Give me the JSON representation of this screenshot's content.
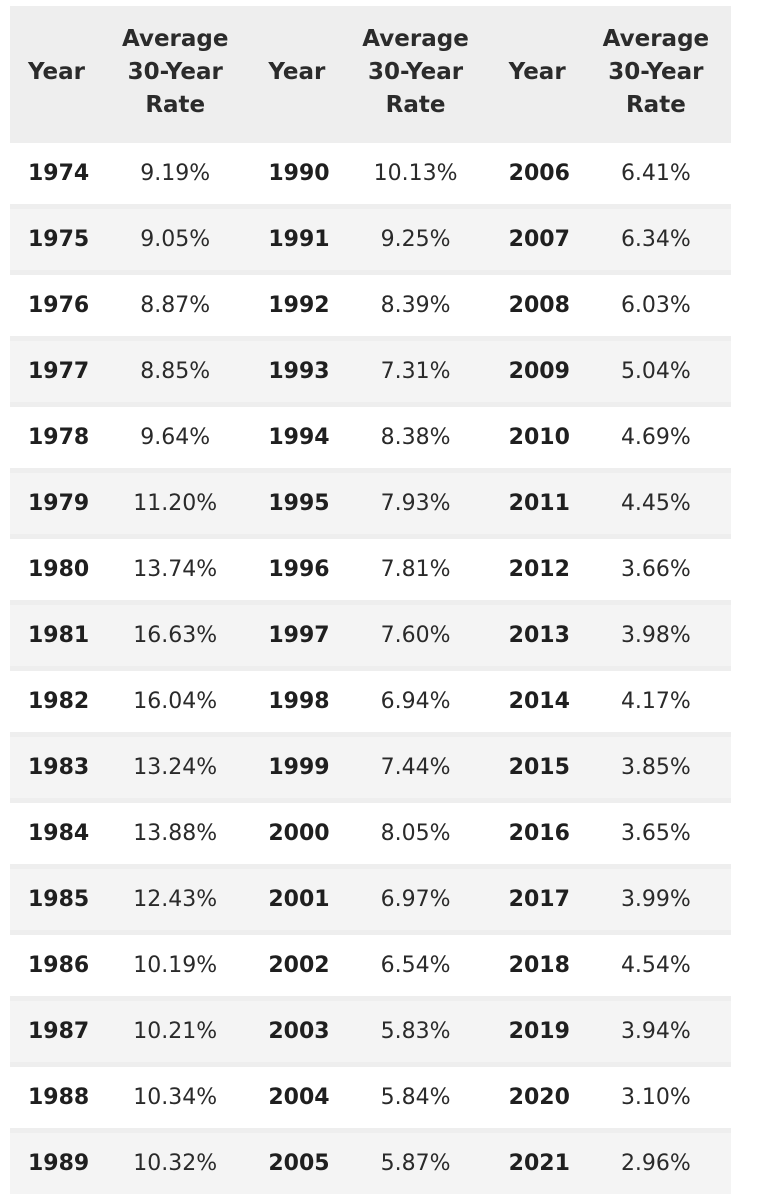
{
  "table": {
    "headers": {
      "year": "Year",
      "rate": [
        "Average",
        "30-Year",
        "Rate"
      ]
    },
    "rows": [
      [
        [
          "1974",
          "9.19%"
        ],
        [
          "1990",
          "10.13%"
        ],
        [
          "2006",
          "6.41%"
        ]
      ],
      [
        [
          "1975",
          "9.05%"
        ],
        [
          "1991",
          "9.25%"
        ],
        [
          "2007",
          "6.34%"
        ]
      ],
      [
        [
          "1976",
          "8.87%"
        ],
        [
          "1992",
          "8.39%"
        ],
        [
          "2008",
          "6.03%"
        ]
      ],
      [
        [
          "1977",
          "8.85%"
        ],
        [
          "1993",
          "7.31%"
        ],
        [
          "2009",
          "5.04%"
        ]
      ],
      [
        [
          "1978",
          "9.64%"
        ],
        [
          "1994",
          "8.38%"
        ],
        [
          "2010",
          "4.69%"
        ]
      ],
      [
        [
          "1979",
          "11.20%"
        ],
        [
          "1995",
          "7.93%"
        ],
        [
          "2011",
          "4.45%"
        ]
      ],
      [
        [
          "1980",
          "13.74%"
        ],
        [
          "1996",
          "7.81%"
        ],
        [
          "2012",
          "3.66%"
        ]
      ],
      [
        [
          "1981",
          "16.63%"
        ],
        [
          "1997",
          "7.60%"
        ],
        [
          "2013",
          "3.98%"
        ]
      ],
      [
        [
          "1982",
          "16.04%"
        ],
        [
          "1998",
          "6.94%"
        ],
        [
          "2014",
          "4.17%"
        ]
      ],
      [
        [
          "1983",
          "13.24%"
        ],
        [
          "1999",
          "7.44%"
        ],
        [
          "2015",
          "3.85%"
        ]
      ],
      [
        [
          "1984",
          "13.88%"
        ],
        [
          "2000",
          "8.05%"
        ],
        [
          "2016",
          "3.65%"
        ]
      ],
      [
        [
          "1985",
          "12.43%"
        ],
        [
          "2001",
          "6.97%"
        ],
        [
          "2017",
          "3.99%"
        ]
      ],
      [
        [
          "1986",
          "10.19%"
        ],
        [
          "2002",
          "6.54%"
        ],
        [
          "2018",
          "4.54%"
        ]
      ],
      [
        [
          "1987",
          "10.21%"
        ],
        [
          "2003",
          "5.83%"
        ],
        [
          "2019",
          "3.94%"
        ]
      ],
      [
        [
          "1988",
          "10.34%"
        ],
        [
          "2004",
          "5.84%"
        ],
        [
          "2020",
          "3.10%"
        ]
      ],
      [
        [
          "1989",
          "10.32%"
        ],
        [
          "2005",
          "5.87%"
        ],
        [
          "2021",
          "2.96%"
        ]
      ]
    ]
  },
  "colors": {
    "header_bg": "#eeeeee",
    "row_bg": "#ffffff",
    "alt_row_bg": "#f4f4f4",
    "text": "#1f1f1f"
  }
}
